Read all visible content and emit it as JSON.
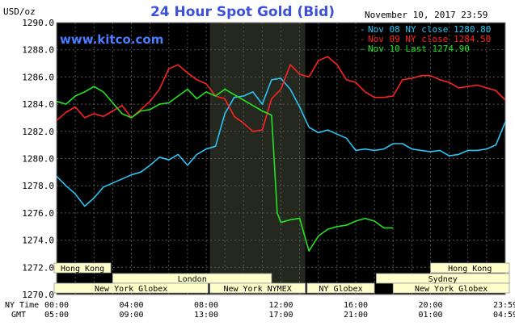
{
  "header": {
    "ylabel": "USD/oz",
    "title": "24 Hour Spot Gold (Bid)",
    "date": "November 10, 2017 23:59",
    "site": "www.kitco.com"
  },
  "colors": {
    "background": "#000000",
    "grid": "#555555",
    "axis_text": "#000000",
    "shade": "#25281f",
    "title": "#3c50d8",
    "site": "#4a7cff",
    "market_band": "#ffffcc"
  },
  "legend": [
    {
      "text": "Nov 08 NY close 1280.80",
      "color": "#29c5f6"
    },
    {
      "text": "Nov 09 NY close 1284.50",
      "color": "#ff2222"
    },
    {
      "text": "Nov 10 Last 1274.90",
      "color": "#22e422"
    }
  ],
  "chart_data": {
    "type": "line",
    "title": "24 Hour Spot Gold (Bid)",
    "ylabel": "USD/oz",
    "xlim": [
      0,
      24
    ],
    "ylim": [
      1270,
      1290
    ],
    "yticks": [
      "1290.0",
      "1288.0",
      "1286.0",
      "1284.0",
      "1282.0",
      "1280.0",
      "1278.0",
      "1276.0",
      "1274.0",
      "1272.0",
      "1270.0"
    ],
    "xticks": [
      {
        "x": 0,
        "ny": "00:00",
        "gmt": "05:00"
      },
      {
        "x": 4,
        "ny": "04:00",
        "gmt": "09:00"
      },
      {
        "x": 8,
        "ny": "08:00",
        "gmt": "13:00"
      },
      {
        "x": 12,
        "ny": "12:00",
        "gmt": "17:00"
      },
      {
        "x": 16,
        "ny": "16:00",
        "gmt": "21:00"
      },
      {
        "x": 20,
        "ny": "20:00",
        "gmt": "01:00"
      },
      {
        "x": 24,
        "ny": "23:59",
        "gmt": "04:59"
      }
    ],
    "row_labels": [
      "NY Time",
      "GMT"
    ],
    "shaded_x": [
      8.2,
      13.3
    ],
    "series": [
      {
        "name": "Nov 08 NY close 1280.80",
        "color": "#29c5f6",
        "x": [
          0,
          0.5,
          1,
          1.5,
          2,
          2.5,
          3,
          3.5,
          4,
          4.5,
          5,
          5.5,
          6,
          6.5,
          7,
          7.5,
          8,
          8.5,
          9,
          9.5,
          10,
          10.5,
          11,
          11.5,
          12,
          12.5,
          13,
          13.5,
          14,
          14.5,
          15,
          15.5,
          16,
          16.5,
          17,
          17.5,
          18,
          18.5,
          19,
          19.5,
          20,
          20.5,
          21,
          21.5,
          22,
          22.5,
          23,
          23.5,
          24
        ],
        "y": [
          1278.7,
          1278.0,
          1277.4,
          1276.5,
          1277.1,
          1277.9,
          1278.2,
          1278.5,
          1278.8,
          1279.0,
          1279.5,
          1280.1,
          1279.9,
          1280.3,
          1279.5,
          1280.3,
          1280.7,
          1280.9,
          1283.3,
          1284.5,
          1284.6,
          1284.9,
          1284.0,
          1285.8,
          1285.9,
          1285.1,
          1283.8,
          1282.3,
          1281.9,
          1282.1,
          1281.8,
          1281.5,
          1280.6,
          1280.7,
          1280.6,
          1280.7,
          1281.1,
          1281.1,
          1280.7,
          1280.6,
          1280.5,
          1280.6,
          1280.2,
          1280.3,
          1280.6,
          1280.6,
          1280.7,
          1281.0,
          1282.7
        ]
      },
      {
        "name": "Nov 09 NY close 1284.50",
        "color": "#ff2222",
        "x": [
          0,
          0.5,
          1,
          1.5,
          2,
          2.5,
          3,
          3.5,
          4,
          4.5,
          5,
          5.5,
          6,
          6.5,
          7,
          7.5,
          8,
          8.5,
          9,
          9.5,
          10,
          10.5,
          11,
          11.5,
          12,
          12.5,
          13,
          13.5,
          14,
          14.5,
          15,
          15.5,
          16,
          16.5,
          17,
          17.5,
          18,
          18.5,
          19,
          19.5,
          20,
          20.5,
          21,
          21.5,
          22,
          22.5,
          23,
          23.5,
          24
        ],
        "y": [
          1282.8,
          1283.4,
          1283.8,
          1283.0,
          1283.3,
          1283.1,
          1283.5,
          1283.9,
          1283.0,
          1283.6,
          1284.2,
          1285.1,
          1286.6,
          1286.9,
          1286.3,
          1285.8,
          1285.5,
          1284.6,
          1284.4,
          1283.1,
          1282.6,
          1282.0,
          1282.1,
          1284.4,
          1285.1,
          1286.9,
          1286.2,
          1286.0,
          1287.2,
          1287.5,
          1286.9,
          1285.8,
          1285.6,
          1284.9,
          1284.5,
          1284.5,
          1284.6,
          1285.8,
          1285.9,
          1286.1,
          1286.1,
          1285.8,
          1285.6,
          1285.2,
          1285.3,
          1285.4,
          1285.2,
          1285.0,
          1284.3
        ]
      },
      {
        "name": "Nov 10 Last 1274.90",
        "color": "#22e422",
        "x": [
          0,
          0.5,
          1,
          1.5,
          2,
          2.5,
          3,
          3.5,
          4,
          4.5,
          5,
          5.5,
          6,
          6.5,
          7,
          7.5,
          8,
          8.5,
          9,
          9.5,
          10,
          10.5,
          11,
          11.5,
          11.8,
          12,
          12.5,
          13,
          13.5,
          14,
          14.5,
          15,
          15.5,
          16,
          16.5,
          17,
          17.5,
          18
        ],
        "y": [
          1284.2,
          1284.0,
          1284.6,
          1284.9,
          1285.3,
          1284.9,
          1284.1,
          1283.3,
          1283.0,
          1283.5,
          1283.6,
          1284.0,
          1284.1,
          1284.6,
          1285.1,
          1284.4,
          1284.9,
          1284.6,
          1285.1,
          1284.7,
          1284.3,
          1283.9,
          1283.5,
          1283.2,
          1276.0,
          1275.3,
          1275.5,
          1275.6,
          1273.2,
          1274.3,
          1274.8,
          1275.0,
          1275.1,
          1275.4,
          1275.6,
          1275.4,
          1274.9,
          1274.9
        ]
      }
    ]
  },
  "market_bands": [
    {
      "label": "Hong Kong",
      "x0": -2.0,
      "x1": 2.9,
      "row": 0
    },
    {
      "label": "Hong Kong",
      "x0": 20.0,
      "x1": 25.5,
      "row": 0
    },
    {
      "label": "London",
      "x0": 3.0,
      "x1": 11.5,
      "row": 1
    },
    {
      "label": "Sydney",
      "x0": 17.1,
      "x1": 25.5,
      "row": 1
    },
    {
      "label": "New York Globex",
      "x0": -2.0,
      "x1": 8.1,
      "row": 2
    },
    {
      "label": "New York NYMEX",
      "x0": 8.2,
      "x1": 13.3,
      "row": 2
    },
    {
      "label": "NY Globex",
      "x0": 13.4,
      "x1": 17.0,
      "row": 2
    },
    {
      "label": "New York Globex",
      "x0": 18.0,
      "x1": 25.5,
      "row": 2
    }
  ]
}
